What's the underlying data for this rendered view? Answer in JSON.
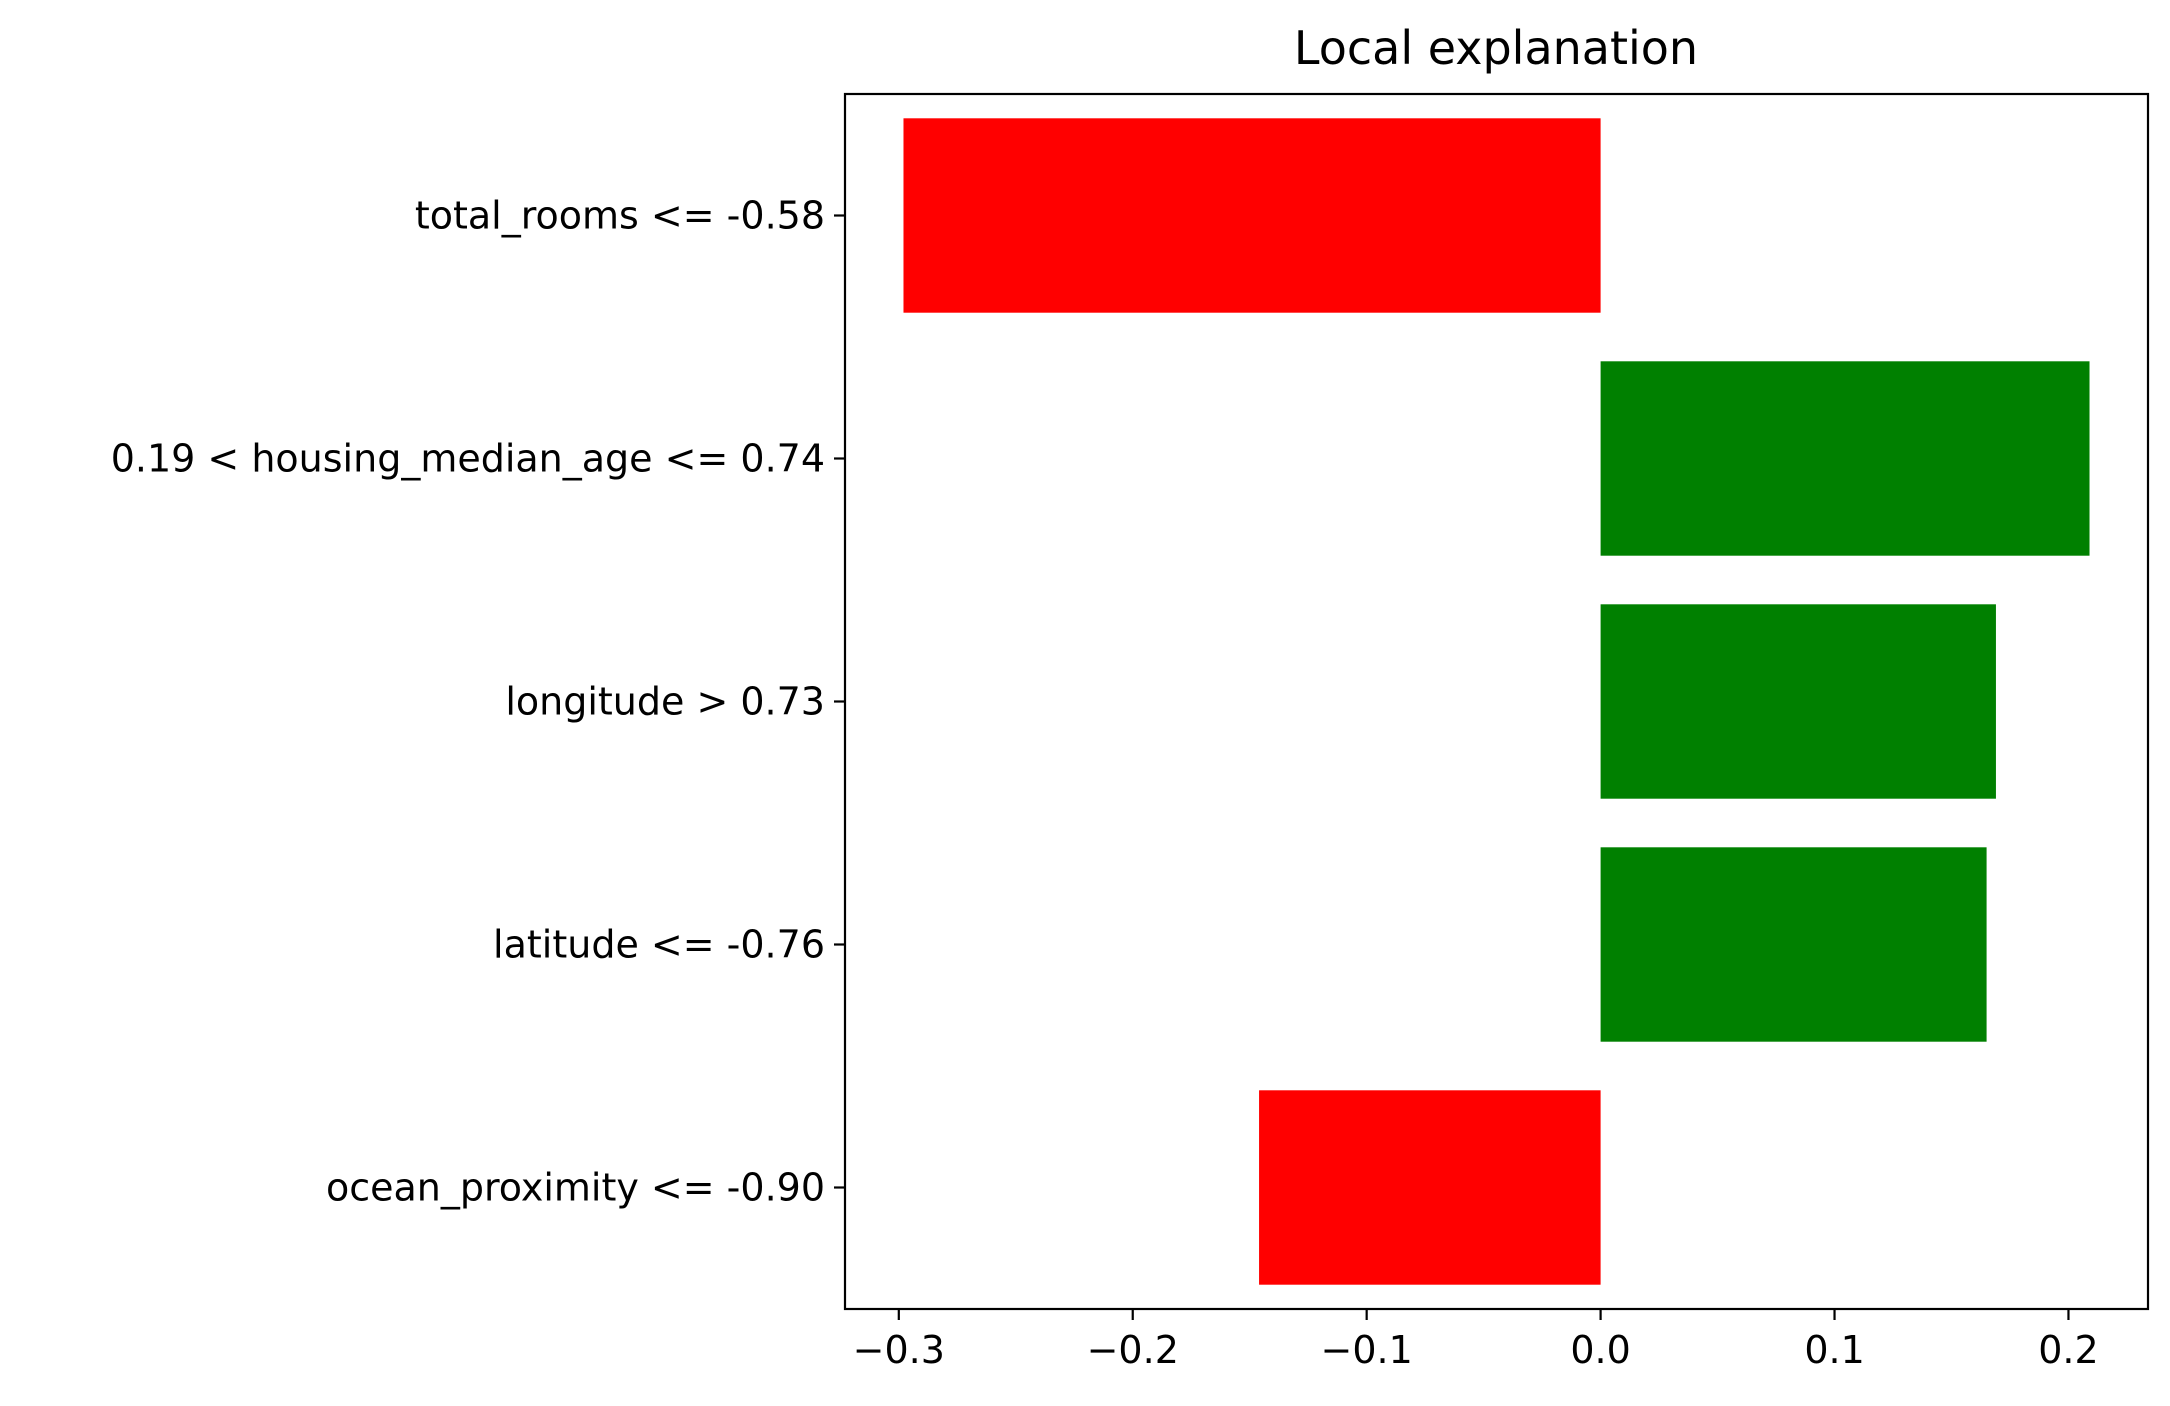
{
  "chart_data": {
    "type": "bar",
    "orientation": "horizontal",
    "title": "Local explanation",
    "xlabel": "",
    "ylabel": "",
    "categories": [
      "total_rooms <= -0.58",
      "0.19 < housing_median_age <= 0.74",
      "longitude > 0.73",
      "latitude <= -0.76",
      "ocean_proximity <= -0.90"
    ],
    "values": [
      -0.298,
      0.209,
      0.169,
      0.165,
      -0.146
    ],
    "xlim": [
      -0.323,
      0.234
    ],
    "xticks": [
      -0.3,
      -0.2,
      -0.1,
      0.0,
      0.1,
      0.2
    ],
    "xtick_labels": [
      "−0.3",
      "−0.2",
      "−0.1",
      "0.0",
      "0.1",
      "0.2"
    ],
    "colors": {
      "positive": "#008000",
      "negative": "#ff0000"
    },
    "grid": false,
    "legend": "none"
  }
}
